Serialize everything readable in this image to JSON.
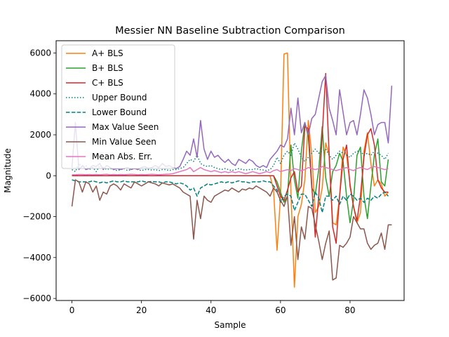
{
  "chart_data": {
    "type": "line",
    "title": "Messier NN Baseline Subtraction Comparison",
    "xlabel": "Sample",
    "ylabel": "Magnitude",
    "xlim": [
      -4.55,
      95.55
    ],
    "ylim": [
      -6100,
      6600
    ],
    "xticks": [
      0,
      20,
      40,
      60,
      80
    ],
    "yticks": [
      -6000,
      -4000,
      -2000,
      0,
      2000,
      4000,
      6000
    ],
    "legend_position": "upper-left",
    "series": [
      {
        "name": "A+ BLS",
        "color": "#ff7f0e",
        "dash": "solid",
        "values": [
          0,
          0,
          0,
          0,
          0,
          0,
          0,
          0,
          0,
          0,
          0,
          0,
          0,
          0,
          0,
          0,
          0,
          0,
          0,
          0,
          0,
          0,
          0,
          0,
          0,
          0,
          0,
          0,
          0,
          0,
          0,
          0,
          0,
          0,
          0,
          0,
          0,
          0,
          0,
          0,
          0,
          0,
          0,
          0,
          0,
          0,
          0,
          0,
          0,
          0,
          0,
          0,
          0,
          0,
          0,
          0,
          0,
          0,
          -700,
          -3650,
          -1000,
          5950,
          6000,
          -800,
          -5450,
          -2000,
          -1400,
          -200,
          2700,
          1000,
          -1800,
          -1500,
          -600,
          1600,
          1000,
          -2300,
          -2400,
          -1000,
          1400,
          1000,
          -400,
          -1500,
          -2300,
          -1800,
          1200,
          2100,
          600,
          -500,
          -200,
          -400,
          -1000,
          -800
        ]
      },
      {
        "name": "B+ BLS",
        "color": "#2ca02c",
        "dash": "solid",
        "values": [
          0,
          0,
          0,
          0,
          0,
          0,
          0,
          0,
          0,
          0,
          0,
          0,
          0,
          0,
          0,
          0,
          0,
          0,
          0,
          0,
          0,
          0,
          0,
          0,
          0,
          0,
          0,
          0,
          0,
          0,
          0,
          0,
          0,
          0,
          0,
          0,
          0,
          0,
          0,
          0,
          0,
          0,
          0,
          0,
          0,
          0,
          0,
          0,
          0,
          0,
          0,
          0,
          0,
          0,
          0,
          0,
          0,
          0,
          0,
          -300,
          -800,
          -1300,
          -1000,
          1500,
          -200,
          -1100,
          1200,
          2600,
          1900,
          -600,
          -900,
          300,
          2400,
          -100,
          -1000,
          200,
          500,
          1100,
          700,
          -1000,
          -2300,
          -1200,
          1000,
          1400,
          -1000,
          -2100,
          -500,
          1000,
          1800,
          -300,
          -500,
          800
        ]
      },
      {
        "name": "C+ BLS",
        "color": "#d62728",
        "dash": "solid",
        "values": [
          0,
          0,
          0,
          0,
          0,
          0,
          0,
          0,
          0,
          0,
          0,
          0,
          0,
          0,
          0,
          0,
          0,
          0,
          0,
          0,
          0,
          0,
          0,
          0,
          0,
          0,
          0,
          0,
          0,
          0,
          0,
          0,
          0,
          0,
          0,
          0,
          0,
          0,
          0,
          0,
          0,
          0,
          0,
          0,
          0,
          0,
          0,
          0,
          0,
          0,
          0,
          0,
          0,
          0,
          0,
          0,
          0,
          0,
          0,
          -500,
          -1000,
          -1200,
          -700,
          -100,
          200,
          -800,
          -500,
          2400,
          2300,
          -500,
          -3000,
          -1000,
          2000,
          5000,
          1000,
          -2500,
          -3300,
          -1000,
          800,
          1500,
          -500,
          -1500,
          -2200,
          -1000,
          900,
          2000,
          2300,
          1500,
          -200,
          -600,
          -800,
          -800
        ]
      },
      {
        "name": "Upper Bound",
        "color": "#008080",
        "dash": "dotted",
        "values": [
          300,
          200,
          600,
          400,
          500,
          300,
          400,
          200,
          500,
          400,
          300,
          350,
          300,
          250,
          300,
          350,
          250,
          300,
          350,
          300,
          250,
          300,
          300,
          280,
          300,
          250,
          300,
          300,
          250,
          300,
          300,
          350,
          400,
          600,
          800,
          700,
          1000,
          600,
          500,
          450,
          500,
          400,
          350,
          300,
          350,
          300,
          250,
          300,
          350,
          300,
          280,
          300,
          300,
          350,
          300,
          280,
          250,
          300,
          500,
          900,
          600,
          1000,
          1200,
          1000,
          1600,
          1300,
          900,
          700,
          900,
          1100,
          1300,
          1100,
          1200,
          1300,
          1000,
          800,
          1000,
          1200,
          1100,
          1000,
          900,
          1100,
          1200,
          1200,
          1000,
          1100,
          1000,
          1200,
          1100,
          1000,
          800,
          1100
        ]
      },
      {
        "name": "Lower Bound",
        "color": "#008080",
        "dash": "dashed",
        "values": [
          -200,
          -250,
          -300,
          -300,
          -300,
          -300,
          -250,
          -300,
          -350,
          -300,
          -350,
          -300,
          -250,
          -300,
          -300,
          -250,
          -300,
          -300,
          -300,
          -300,
          -250,
          -300,
          -300,
          -280,
          -300,
          -300,
          -350,
          -300,
          -300,
          -350,
          -400,
          -350,
          -400,
          -500,
          -700,
          -600,
          -1000,
          -600,
          -500,
          -400,
          -450,
          -400,
          -350,
          -300,
          -350,
          -300,
          -350,
          -300,
          -250,
          -300,
          -300,
          -350,
          -300,
          -300,
          -300,
          -250,
          -300,
          -300,
          -500,
          -700,
          -1300,
          -1000,
          -900,
          -1000,
          -1700,
          -1300,
          -900,
          -900,
          -1200,
          -1500,
          -800,
          -1100,
          -1800,
          -1000,
          -1000,
          -1200,
          -1000,
          -1400,
          -1000,
          -1200,
          -900,
          -1000,
          -1200,
          -1100,
          -1300,
          -1100,
          -1200,
          -1000,
          -1100,
          -900,
          -800,
          -1000
        ]
      },
      {
        "name": "Max Value Seen",
        "color": "#9467bd",
        "dash": "solid",
        "values": [
          400,
          2600,
          300,
          500,
          300,
          350,
          500,
          450,
          600,
          300,
          500,
          400,
          300,
          350,
          300,
          350,
          400,
          300,
          350,
          300,
          400,
          450,
          350,
          400,
          500,
          400,
          600,
          450,
          500,
          400,
          350,
          450,
          800,
          1200,
          1000,
          1800,
          900,
          2700,
          1300,
          800,
          1200,
          900,
          1000,
          800,
          650,
          800,
          600,
          500,
          800,
          700,
          600,
          800,
          700,
          500,
          400,
          500,
          400,
          800,
          1000,
          1200,
          1500,
          1400,
          1800,
          3300,
          2000,
          3800,
          2100,
          2600,
          2000,
          2800,
          3000,
          3800,
          4600,
          4900,
          3300,
          2700,
          2000,
          4200,
          3100,
          2000,
          2600,
          2700,
          2000,
          3000,
          4200,
          3800,
          3000,
          2000,
          2500,
          2600,
          2600,
          1600,
          4400
        ]
      },
      {
        "name": "Min Value Seen",
        "color": "#8c564b",
        "dash": "solid",
        "values": [
          -1500,
          -200,
          -300,
          -800,
          -300,
          -400,
          -800,
          -500,
          -1200,
          -800,
          -900,
          -500,
          -400,
          -500,
          -700,
          -400,
          -500,
          -600,
          -300,
          -400,
          -500,
          -400,
          -300,
          -350,
          -400,
          -500,
          -350,
          -400,
          -450,
          -400,
          -500,
          -600,
          -800,
          -900,
          -1000,
          -3100,
          -1200,
          -2100,
          -1000,
          -1200,
          -1300,
          -1000,
          -900,
          -800,
          -700,
          -750,
          -600,
          -700,
          -800,
          -650,
          -700,
          -600,
          -650,
          -500,
          -600,
          -700,
          -800,
          -1000,
          -600,
          -800,
          -1200,
          -1500,
          -1000,
          -3400,
          -2000,
          -4100,
          -2500,
          -3100,
          -1500,
          -1600,
          -2400,
          -3200,
          -4100,
          -3300,
          -2700,
          -5100,
          -5000,
          -3400,
          -3500,
          -3300,
          -3000,
          -2000,
          -2300,
          -2600,
          -2600,
          -3300,
          -3600,
          -3400,
          -3300,
          -2800,
          -3600,
          -2400,
          -2400
        ]
      },
      {
        "name": "Mean Abs. Err.",
        "color": "#e377c2",
        "dash": "solid",
        "values": [
          50,
          50,
          60,
          60,
          50,
          60,
          50,
          60,
          50,
          60,
          70,
          50,
          60,
          50,
          60,
          50,
          60,
          70,
          60,
          50,
          60,
          50,
          60,
          70,
          60,
          50,
          60,
          70,
          80,
          100,
          150,
          200,
          250,
          300,
          400,
          200,
          300,
          400,
          300,
          250,
          200,
          250,
          200,
          150,
          200,
          150,
          200,
          150,
          200,
          150,
          100,
          150,
          200,
          150,
          100,
          150,
          200,
          150,
          250,
          300,
          200,
          250,
          300,
          250,
          350,
          300,
          250,
          300,
          400,
          350,
          300,
          350,
          450,
          400,
          350,
          300,
          250,
          300,
          350,
          400,
          300,
          250,
          350,
          400,
          350,
          300,
          400,
          450,
          400,
          350,
          300,
          350
        ]
      }
    ]
  }
}
